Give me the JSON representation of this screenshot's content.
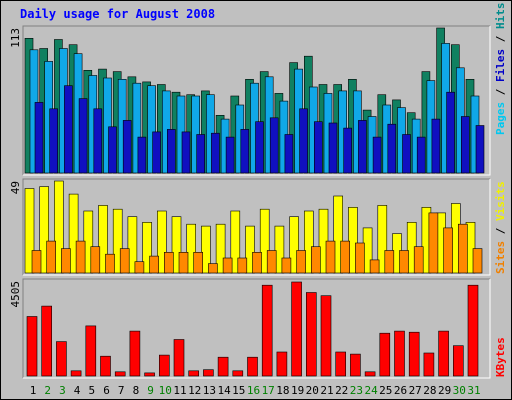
{
  "chart_data": {
    "type": "bar",
    "title": "Daily usage for August 2008",
    "categories": [
      "1",
      "2",
      "3",
      "4",
      "5",
      "6",
      "7",
      "8",
      "9",
      "10",
      "11",
      "12",
      "13",
      "14",
      "15",
      "16",
      "17",
      "18",
      "19",
      "20",
      "21",
      "22",
      "23",
      "24",
      "25",
      "26",
      "27",
      "28",
      "29",
      "30",
      "31"
    ],
    "weekend_days": [
      2,
      3,
      9,
      10,
      16,
      17,
      23,
      24,
      30,
      31
    ],
    "panels": [
      {
        "id": "hits-files-pages",
        "max_label": "113",
        "max": 113,
        "legend": [
          "Pages",
          "Files",
          "Hits"
        ],
        "legend_colors": [
          "#00c8f0",
          "#0000c8",
          "#008c8c"
        ],
        "series": [
          {
            "name": "Hits",
            "color": "#108060",
            "values": [
              105,
              97,
              104,
              100,
              80,
              81,
              79,
              75,
              71,
              69,
              63,
              61,
              64,
              45,
              60,
              73,
              79,
              62,
              86,
              91,
              69,
              69,
              73,
              49,
              61,
              57,
              47,
              79,
              113,
              100,
              73
            ]
          },
          {
            "name": "Files",
            "color": "#10a8e8",
            "values": [
              96,
              87,
              97,
              93,
              76,
              74,
              73,
              70,
              68,
              64,
              60,
              60,
              61,
              42,
              53,
              70,
              75,
              56,
              81,
              67,
              62,
              64,
              64,
              44,
              53,
              51,
              42,
              72,
              101,
              82,
              60
            ]
          },
          {
            "name": "Pages",
            "color": "#1010c0",
            "values": [
              55,
              50,
              68,
              58,
              50,
              36,
              41,
              28,
              32,
              34,
              32,
              30,
              31,
              28,
              34,
              40,
              43,
              30,
              50,
              40,
              39,
              35,
              41,
              28,
              38,
              30,
              28,
              42,
              63,
              44,
              37
            ]
          }
        ]
      },
      {
        "id": "visits-sites",
        "max_label": "49",
        "max": 49,
        "legend": [
          "Sites",
          "Visits"
        ],
        "legend_colors": [
          "#f08000",
          "#f0f000"
        ],
        "series": [
          {
            "name": "Visits",
            "color": "#ffff00",
            "values": [
              45,
              46,
              49,
              42,
              33,
              36,
              34,
              30,
              27,
              33,
              30,
              26,
              25,
              26,
              33,
              25,
              34,
              25,
              30,
              33,
              34,
              41,
              35,
              24,
              36,
              21,
              27,
              35,
              32,
              37,
              27
            ]
          },
          {
            "name": "Sites",
            "color": "#ff8800",
            "values": [
              12,
              17,
              13,
              17,
              14,
              10,
              13,
              6,
              9,
              11,
              11,
              11,
              5,
              8,
              8,
              11,
              12,
              8,
              12,
              14,
              17,
              17,
              16,
              7,
              12,
              12,
              14,
              32,
              24,
              26,
              13
            ]
          }
        ]
      },
      {
        "id": "kbytes",
        "max_label": "4505",
        "max": 4505,
        "legend": [
          "KBytes"
        ],
        "legend_colors": [
          "#ff0000"
        ],
        "series": [
          {
            "name": "KBytes",
            "color": "#ff0000",
            "values": [
              2850,
              3350,
              1650,
              250,
              2400,
              950,
              200,
              2150,
              150,
              1000,
              1750,
              250,
              300,
              900,
              250,
              900,
              4350,
              1150,
              4505,
              4000,
              3850,
              1150,
              1050,
              200,
              2050,
              2150,
              2100,
              1100,
              2150,
              1450,
              4350
            ]
          }
        ]
      }
    ]
  }
}
